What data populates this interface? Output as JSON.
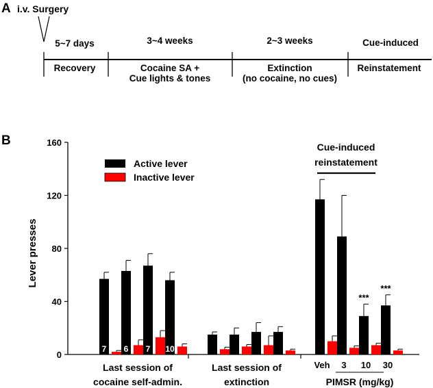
{
  "panel_a": {
    "label": "A",
    "start_event": "i.v. Surgery",
    "phases": [
      {
        "duration": "5~7 days",
        "lines": [
          "Recovery"
        ]
      },
      {
        "duration": "3~4 weeks",
        "lines": [
          "Cocaine SA +",
          "Cue lights & tones"
        ]
      },
      {
        "duration": "2~3 weeks",
        "lines": [
          "Extinction",
          "(no cocaine, no cues)"
        ]
      },
      {
        "duration": "Cue-induced",
        "lines": [
          "Reinstatement"
        ]
      }
    ]
  },
  "panel_b": {
    "label": "B"
  },
  "colors": {
    "active": "#000000",
    "inactive": "#ff0000"
  },
  "chart_data": {
    "type": "bar",
    "ylabel": "Lever presses",
    "ylim": [
      0,
      160
    ],
    "yticks": [
      0,
      40,
      80,
      120,
      160
    ],
    "legend": {
      "placement": "top-left",
      "entries": [
        {
          "name": "Active lever",
          "color": "#000000"
        },
        {
          "name": "Inactive lever",
          "color": "#ff0000"
        }
      ]
    },
    "annotation": {
      "lines": [
        "Cue-induced",
        "reinstatement"
      ]
    },
    "groups": [
      {
        "label_lines": [
          "Last session of",
          "cocaine self-admin."
        ],
        "conditions": [
          {
            "tick": "",
            "n": "7",
            "active": 57,
            "active_err": 5,
            "inactive": 2,
            "inactive_err": 1,
            "sig": ""
          },
          {
            "tick": "",
            "n": "6",
            "active": 63,
            "active_err": 8,
            "inactive": 7,
            "inactive_err": 4,
            "sig": ""
          },
          {
            "tick": "",
            "n": "7",
            "active": 67,
            "active_err": 9,
            "inactive": 13,
            "inactive_err": 5,
            "sig": ""
          },
          {
            "tick": "",
            "n": "10",
            "active": 56,
            "active_err": 6,
            "inactive": 6,
            "inactive_err": 2,
            "sig": ""
          }
        ]
      },
      {
        "label_lines": [
          "Last session of",
          "extinction"
        ],
        "conditions": [
          {
            "tick": "",
            "n": "",
            "active": 15,
            "active_err": 2,
            "inactive": 4,
            "inactive_err": 1.5,
            "sig": ""
          },
          {
            "tick": "",
            "n": "",
            "active": 15,
            "active_err": 5,
            "inactive": 6,
            "inactive_err": 1.5,
            "sig": ""
          },
          {
            "tick": "",
            "n": "",
            "active": 17,
            "active_err": 7,
            "inactive": 7,
            "inactive_err": 7,
            "sig": ""
          },
          {
            "tick": "",
            "n": "",
            "active": 17,
            "active_err": 4,
            "inactive": 3,
            "inactive_err": 1,
            "sig": ""
          }
        ]
      },
      {
        "label_lines": [
          "PIMSR (mg/kg)"
        ],
        "conditions": [
          {
            "tick": "Veh",
            "n": "",
            "active": 117,
            "active_err": 15,
            "inactive": 10,
            "inactive_err": 4,
            "sig": ""
          },
          {
            "tick": "3",
            "n": "",
            "active": 89,
            "active_err": 31,
            "inactive": 5,
            "inactive_err": 1.5,
            "sig": ""
          },
          {
            "tick": "10",
            "n": "",
            "active": 29,
            "active_err": 9,
            "inactive": 7,
            "inactive_err": 1.5,
            "sig": "***"
          },
          {
            "tick": "30",
            "n": "",
            "active": 37,
            "active_err": 8,
            "inactive": 3,
            "inactive_err": 1,
            "sig": "***"
          }
        ]
      }
    ]
  }
}
